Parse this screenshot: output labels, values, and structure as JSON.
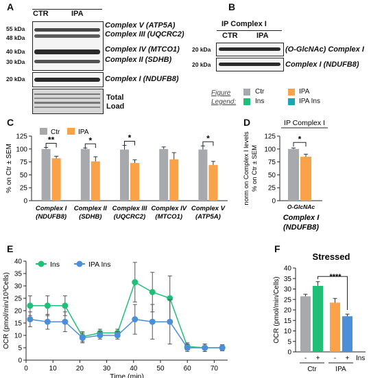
{
  "panels": {
    "A": "A",
    "B": "B",
    "C": "C",
    "D": "D",
    "E": "E",
    "F": "F"
  },
  "panel_a": {
    "groups": [
      "CTR",
      "IPA"
    ],
    "markers": [
      "55 kDa",
      "48 kDa",
      "40 kDa",
      "30 kDa",
      "20 kDa"
    ],
    "labels": [
      "Complex V (ATP5A)",
      "Complex III (UQCRC2)",
      "Complex IV (MTCO1)",
      "Complex II (SDHB)",
      "Complex I (NDUFB8)"
    ],
    "total_load": [
      "Total",
      "Load"
    ]
  },
  "panel_b": {
    "title": "IP Complex I",
    "groups": [
      "CTR",
      "IPA"
    ],
    "markers": [
      "20 kDa",
      "20 kDa"
    ],
    "labels": [
      "(O-GlcNAc) Complex I",
      "Complex I (NDUFB8)"
    ]
  },
  "figure_legend": {
    "title_line1": "Figure",
    "title_line2": "Legend:",
    "items": [
      {
        "label": "Ctr",
        "color": "#a7a9ac"
      },
      {
        "label": "IPA",
        "color": "#f9a24a"
      },
      {
        "label": "Ins",
        "color": "#1fbf77"
      },
      {
        "label": "IPA Ins",
        "color": "#1aa6b7"
      }
    ]
  },
  "chart_data": [
    {
      "panel": "C",
      "type": "bar",
      "ylabel": "% on Ctr ± SEM",
      "ylim": [
        0,
        125
      ],
      "yticks": [
        0,
        25,
        50,
        75,
        100,
        125
      ],
      "legend": [
        "Ctr",
        "IPA"
      ],
      "categories": [
        [
          "Complex I",
          "(NDUFB8)"
        ],
        [
          "Complex II",
          "(SDHB)"
        ],
        [
          "Complex III",
          "(UQCRC2)"
        ],
        [
          "Complex IV",
          "(MTCO1)"
        ],
        [
          "Complex V",
          "(ATP5A)"
        ]
      ],
      "series": [
        {
          "name": "Ctr",
          "color": "#a7a9ac",
          "values": [
            100,
            100,
            99,
            100,
            99
          ],
          "errors": [
            3,
            2,
            8,
            4,
            7
          ]
        },
        {
          "name": "IPA",
          "color": "#f9a24a",
          "values": [
            82,
            76,
            73,
            80,
            69
          ],
          "errors": [
            4,
            9,
            6,
            13,
            7
          ]
        }
      ],
      "significance": [
        "**",
        "*",
        "*",
        "",
        "*"
      ]
    },
    {
      "panel": "D",
      "type": "bar",
      "title": "IP Complex I",
      "ylabel_line1": "norm on Complex I levels",
      "ylabel_line2": "% on Ctr ± SEM",
      "ylim": [
        0,
        125
      ],
      "yticks": [
        0,
        25,
        50,
        75,
        100,
        125
      ],
      "category": "O-GlcNAc",
      "xlabel_line1": "Complex I",
      "xlabel_line2": "(NDUFB8)",
      "series": [
        {
          "name": "Ctr",
          "color": "#a7a9ac",
          "value": 100,
          "error": 2
        },
        {
          "name": "IPA",
          "color": "#f9a24a",
          "value": 85,
          "error": 5
        }
      ],
      "significance": "*"
    },
    {
      "panel": "E",
      "type": "line",
      "xlabel": "Time (min)",
      "ylabel": "OCR (pmol/min/10³Cells)",
      "xlim": [
        0,
        75
      ],
      "ylim": [
        0,
        40
      ],
      "xticks": [
        0,
        10,
        20,
        30,
        40,
        50,
        60,
        70
      ],
      "yticks": [
        0,
        5,
        10,
        15,
        20,
        25,
        30,
        35,
        40
      ],
      "x": [
        1.5,
        8,
        14.5,
        21,
        27.5,
        34,
        40.5,
        47,
        53.5,
        60,
        66.5,
        73
      ],
      "series": [
        {
          "name": "Ins",
          "color": "#1fbf77",
          "values": [
            22,
            22,
            22,
            9.5,
            11,
            11,
            31.5,
            27.5,
            25,
            5.5,
            5,
            5
          ],
          "errors": [
            4,
            4,
            4,
            2,
            1.5,
            1.5,
            8,
            8,
            9,
            1.5,
            1.5,
            1.2
          ]
        },
        {
          "name": "IPA Ins",
          "color": "#4c8fd8",
          "values": [
            16.5,
            15.5,
            15.5,
            9,
            10,
            10,
            16.5,
            15.5,
            15.5,
            5,
            5,
            5
          ],
          "errors": [
            3,
            3,
            4,
            2,
            1.5,
            1.5,
            6,
            7,
            9,
            1.5,
            1.5,
            1.2
          ]
        }
      ]
    },
    {
      "panel": "F",
      "type": "bar",
      "title": "Stressed",
      "ylabel": "OCR (pmol/min/Cells)",
      "ylim": [
        0,
        40
      ],
      "yticks": [
        0,
        5,
        10,
        15,
        20,
        25,
        30,
        35,
        40
      ],
      "groups": [
        "Ctr",
        "IPA"
      ],
      "ins_signs": [
        "-",
        "+",
        "-",
        "+"
      ],
      "ins_label": "Ins",
      "bars": [
        {
          "color": "#a7a9ac",
          "value": 26.5,
          "error": 1
        },
        {
          "color": "#1fbf77",
          "value": 31.5,
          "error": 2
        },
        {
          "color": "#f9a24a",
          "value": 23.5,
          "error": 2
        },
        {
          "color": "#4c8fd8",
          "value": 17,
          "error": 1
        }
      ],
      "significance": "****"
    }
  ]
}
